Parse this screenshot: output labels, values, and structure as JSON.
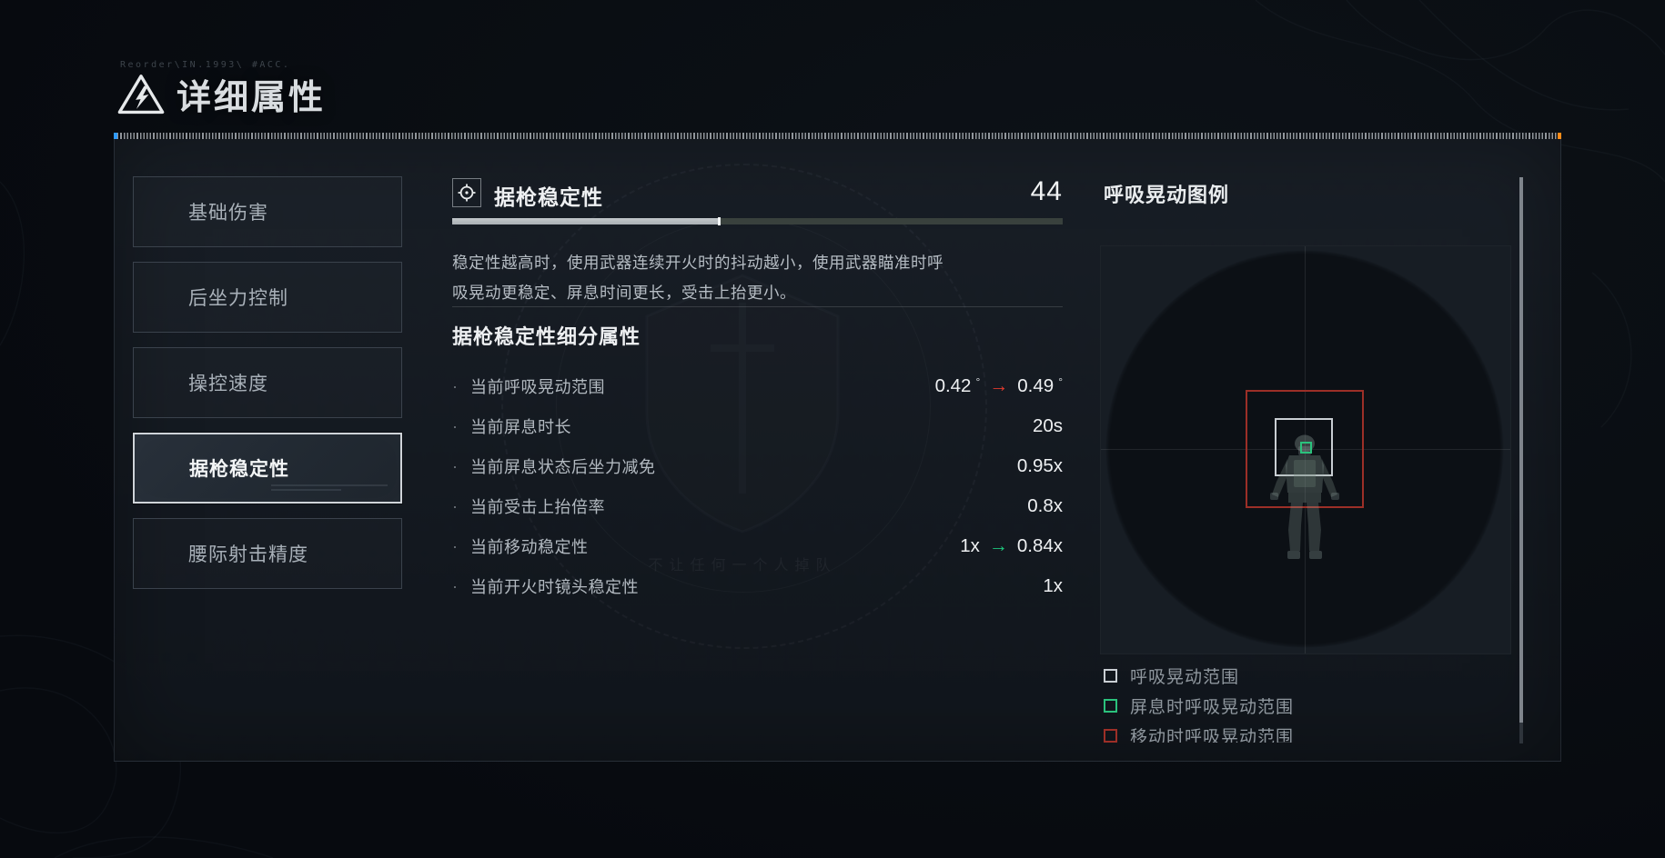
{
  "header": {
    "glitch_text": "Reorder\\IN.1993\\ #ACC.",
    "title": "详细属性"
  },
  "sidebar": {
    "items": [
      {
        "label": "基础伤害",
        "selected": false
      },
      {
        "label": "后坐力控制",
        "selected": false
      },
      {
        "label": "操控速度",
        "selected": false
      },
      {
        "label": "据枪稳定性",
        "selected": true
      },
      {
        "label": "腰际射击精度",
        "selected": false
      }
    ]
  },
  "main": {
    "title": "据枪稳定性",
    "value": "44",
    "progress_pct": 44,
    "description": "稳定性越高时，使用武器连续开火时的抖动越小，使用武器瞄准时呼吸晃动更稳定、屏息时间更长，受击上抬更小。",
    "section_title": "据枪稳定性细分属性",
    "attributes": [
      {
        "label": "当前呼吸晃动范围",
        "parts": [
          {
            "t": "0.42",
            "u": "°"
          },
          {
            "arrow": "#e23b2e"
          },
          {
            "t": "0.49",
            "u": "°"
          }
        ]
      },
      {
        "label": "当前屏息时长",
        "parts": [
          {
            "t": "20s"
          }
        ]
      },
      {
        "label": "当前屏息状态后坐力减免",
        "parts": [
          {
            "t": "0.95x"
          }
        ]
      },
      {
        "label": "当前受击上抬倍率",
        "parts": [
          {
            "t": "0.8x"
          }
        ]
      },
      {
        "label": "当前移动稳定性",
        "parts": [
          {
            "t": "1x"
          },
          {
            "arrow": "#1ec77d"
          },
          {
            "t": "0.84x"
          }
        ]
      },
      {
        "label": "当前开火时镜头稳定性",
        "parts": [
          {
            "t": "1x"
          }
        ]
      }
    ]
  },
  "legend_panel": {
    "title": "呼吸晃动图例",
    "legend": [
      {
        "label": "呼吸晃动范围",
        "color": "#c9ced3"
      },
      {
        "label": "屏息时呼吸晃动范围",
        "color": "#2bc17c"
      },
      {
        "label": "移动时呼吸晃动范围",
        "color": "#9c2f27"
      }
    ]
  },
  "watermark": {
    "motto": "不让任何一个人掉队"
  },
  "colors": {
    "accent_blue": "#2f9bff",
    "accent_orange": "#ff8c1a",
    "increase_red": "#e23b2e",
    "decrease_green": "#1ec77d"
  }
}
